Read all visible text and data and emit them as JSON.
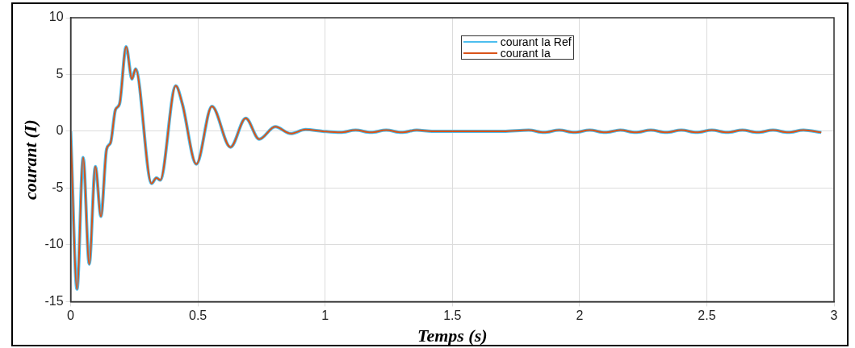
{
  "chart_data": {
    "type": "line",
    "xlabel": "Temps (s)",
    "ylabel": "courant (I)",
    "xlim": [
      0,
      3
    ],
    "xticks": [
      0,
      0.5,
      1,
      1.5,
      2,
      2.5,
      3
    ],
    "ylim": [
      -15,
      10
    ],
    "yticks": [
      -15,
      -10,
      -5,
      0,
      5,
      10
    ],
    "grid": true,
    "legend": "top",
    "marker": "none",
    "line_style": "solid",
    "x": [
      0,
      0.025,
      0.049,
      0.073,
      0.097,
      0.119,
      0.141,
      0.157,
      0.176,
      0.192,
      0.218,
      0.241,
      0.255,
      0.318,
      0.337,
      0.352,
      0.413,
      0.439,
      0.494,
      0.555,
      0.628,
      0.688,
      0.741,
      0.804,
      0.865,
      0.923,
      0.99,
      1.06,
      1.12,
      1.18,
      1.24,
      1.3,
      1.36,
      1.42,
      1.5,
      1.6,
      1.7,
      1.8,
      1.86,
      1.92,
      1.98,
      2.04,
      2.1,
      2.16,
      2.22,
      2.28,
      2.34,
      2.4,
      2.46,
      2.52,
      2.58,
      2.64,
      2.7,
      2.76,
      2.82,
      2.88,
      2.95
    ],
    "series": [
      {
        "name": "courant Ia Ref",
        "color": "#4dbeee",
        "values": [
          0,
          -13.9,
          -2.3,
          -11.7,
          -3.1,
          -7.5,
          -1.6,
          -1.0,
          1.9,
          2.4,
          7.45,
          4.6,
          5.5,
          -4.6,
          -4.1,
          -4.3,
          4.0,
          2.4,
          -2.9,
          2.2,
          -1.4,
          1.15,
          -0.7,
          0.4,
          -0.2,
          0.15,
          0,
          -0.1,
          0.1,
          -0.1,
          0.1,
          -0.1,
          0.1,
          0,
          0,
          0,
          0,
          0.1,
          -0.1,
          0.1,
          -0.1,
          0.1,
          -0.1,
          0.1,
          -0.1,
          0.1,
          -0.1,
          0.1,
          -0.1,
          0.1,
          -0.1,
          0.1,
          -0.1,
          0.1,
          -0.1,
          0.1,
          -0.1
        ]
      },
      {
        "name": "courant Ia",
        "color": "#d95319",
        "values": [
          0,
          -13.9,
          -2.3,
          -11.7,
          -3.1,
          -7.5,
          -1.6,
          -1.0,
          1.9,
          2.4,
          7.45,
          4.6,
          5.5,
          -4.6,
          -4.1,
          -4.3,
          4.0,
          2.4,
          -2.9,
          2.2,
          -1.4,
          1.15,
          -0.7,
          0.4,
          -0.2,
          0.15,
          0,
          -0.1,
          0.1,
          -0.1,
          0.1,
          -0.1,
          0.1,
          0,
          0,
          0,
          0,
          0.1,
          -0.1,
          0.1,
          -0.1,
          0.1,
          -0.1,
          0.1,
          -0.1,
          0.1,
          -0.1,
          0.1,
          -0.1,
          0.1,
          -0.1,
          0.1,
          -0.1,
          0.1,
          -0.1,
          0.1,
          -0.1
        ]
      }
    ]
  }
}
